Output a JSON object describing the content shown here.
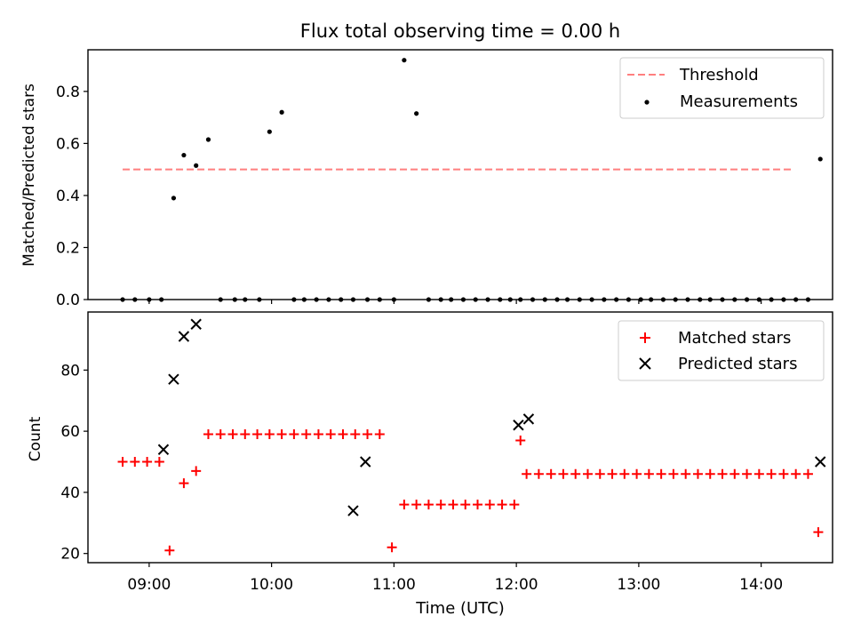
{
  "colors": {
    "threshold": "#ff7f7f",
    "measurement": "#000000",
    "matched": "#ff0000",
    "predicted": "#000000"
  },
  "chart_data": [
    {
      "type": "scatter",
      "title": "Flux total observing time = 0.00 h",
      "xlabel": "",
      "ylabel": "Matched/Predicted stars",
      "xlim": [
        "08:30",
        "14:35"
      ],
      "ylim": [
        0,
        0.96
      ],
      "yticks": [
        "0.0",
        "0.2",
        "0.4",
        "0.6",
        "0.8"
      ],
      "ytick_values": [
        0,
        0.2,
        0.4,
        0.6,
        0.8
      ],
      "grid": false,
      "legend": "top-right",
      "threshold": {
        "name": "Threshold",
        "value": 0.5,
        "x": [
          "08:47",
          "14:15"
        ]
      },
      "series": [
        {
          "name": "Measurements",
          "x": [
            "08:47",
            "08:53",
            "09:00",
            "09:06",
            "09:12",
            "09:17",
            "09:23",
            "09:29",
            "09:35",
            "09:42",
            "09:47",
            "09:54",
            "09:59",
            "10:05",
            "10:11",
            "10:16",
            "10:22",
            "10:28",
            "10:34",
            "10:40",
            "10:47",
            "10:53",
            "11:00",
            "11:05",
            "11:11",
            "11:17",
            "11:23",
            "11:28",
            "11:34",
            "11:40",
            "11:46",
            "11:52",
            "11:57",
            "12:02",
            "12:08",
            "12:14",
            "12:20",
            "12:25",
            "12:31",
            "12:37",
            "12:43",
            "12:49",
            "12:55",
            "13:01",
            "13:06",
            "13:12",
            "13:18",
            "13:24",
            "13:30",
            "13:35",
            "13:41",
            "13:47",
            "13:53",
            "13:59",
            "14:05",
            "14:11",
            "14:17",
            "14:23",
            "14:29"
          ],
          "y": [
            0,
            0,
            0,
            0,
            0.39,
            0.555,
            0.515,
            0.615,
            0,
            0,
            0,
            0,
            0.645,
            0.72,
            0,
            0,
            0,
            0,
            0,
            0,
            0,
            0,
            0,
            0.92,
            0.715,
            0,
            0,
            0,
            0,
            0,
            0,
            0,
            0,
            0,
            0,
            0,
            0,
            0,
            0,
            0,
            0,
            0,
            0,
            0,
            0,
            0,
            0,
            0,
            0,
            0,
            0,
            0,
            0,
            0,
            0,
            0,
            0,
            0,
            0.54
          ]
        }
      ]
    },
    {
      "type": "scatter",
      "title": "",
      "xlabel": "Time (UTC)",
      "ylabel": "Count",
      "xlim": [
        "08:30",
        "14:35"
      ],
      "ylim": [
        17,
        99
      ],
      "yticks": [
        "20",
        "40",
        "60",
        "80"
      ],
      "ytick_values": [
        20,
        40,
        60,
        80
      ],
      "xticks": [
        "09:00",
        "10:00",
        "11:00",
        "12:00",
        "13:00",
        "14:00"
      ],
      "grid": false,
      "legend": "top-right",
      "series": [
        {
          "name": "Matched stars",
          "marker": "+",
          "x": [
            "08:47",
            "08:53",
            "08:59",
            "09:05",
            "09:10",
            "09:17",
            "09:23",
            "09:29",
            "09:35",
            "09:41",
            "09:47",
            "09:53",
            "09:59",
            "10:05",
            "10:11",
            "10:17",
            "10:23",
            "10:29",
            "10:35",
            "10:41",
            "10:47",
            "10:53",
            "10:59",
            "11:05",
            "11:11",
            "11:17",
            "11:23",
            "11:29",
            "11:35",
            "11:41",
            "11:47",
            "11:53",
            "11:59",
            "12:02",
            "12:05",
            "12:11",
            "12:17",
            "12:23",
            "12:29",
            "12:35",
            "12:41",
            "12:47",
            "12:53",
            "12:59",
            "13:05",
            "13:11",
            "13:17",
            "13:23",
            "13:29",
            "13:35",
            "13:41",
            "13:47",
            "13:53",
            "13:59",
            "14:05",
            "14:11",
            "14:17",
            "14:23",
            "14:28"
          ],
          "y": [
            50,
            50,
            50,
            50,
            21,
            43,
            47,
            59,
            59,
            59,
            59,
            59,
            59,
            59,
            59,
            59,
            59,
            59,
            59,
            59,
            59,
            59,
            22,
            36,
            36,
            36,
            36,
            36,
            36,
            36,
            36,
            36,
            36,
            57,
            46,
            46,
            46,
            46,
            46,
            46,
            46,
            46,
            46,
            46,
            46,
            46,
            46,
            46,
            46,
            46,
            46,
            46,
            46,
            46,
            46,
            46,
            46,
            46,
            27
          ]
        },
        {
          "name": "Predicted stars",
          "marker": "x",
          "x": [
            "09:07",
            "09:12",
            "09:17",
            "09:23",
            "10:40",
            "10:46",
            "12:01",
            "12:06",
            "14:29"
          ],
          "y": [
            54,
            77,
            91,
            95,
            34,
            50,
            62,
            64,
            50
          ]
        }
      ]
    }
  ]
}
